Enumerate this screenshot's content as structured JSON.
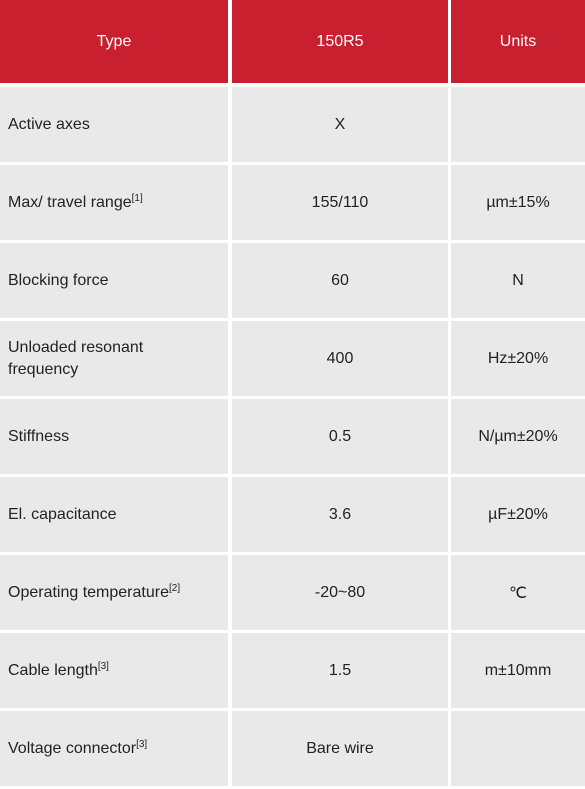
{
  "table": {
    "header": [
      "Type",
      "150R5",
      "Units"
    ],
    "rows": [
      {
        "parameter": "Active axes",
        "value": "X"
      },
      {
        "parameter": "Max/ travel range",
        "note": "[1]",
        "value": "155/110",
        "unit": "µm±15%"
      },
      {
        "parameter": "Blocking force",
        "value": "60",
        "unit": "N"
      },
      {
        "parameter": "Unloaded resonant frequency",
        "value": "400",
        "unit": "Hz±20%"
      },
      {
        "parameter": "Stiffness",
        "value": "0.5",
        "unit": "N/µm±20%"
      },
      {
        "parameter": "El. capacitance",
        "value": "3.6",
        "unit": "µF±20%"
      },
      {
        "parameter": "Operating temperature",
        "note": "[2]",
        "value": "-20~80",
        "unit": "℃"
      },
      {
        "parameter": "Cable length",
        "note": "[3]",
        "value": "1.5",
        "unit": "m±10mm"
      },
      {
        "parameter": "Voltage connector",
        "note": "[3]",
        "value": "Bare wire"
      }
    ]
  }
}
